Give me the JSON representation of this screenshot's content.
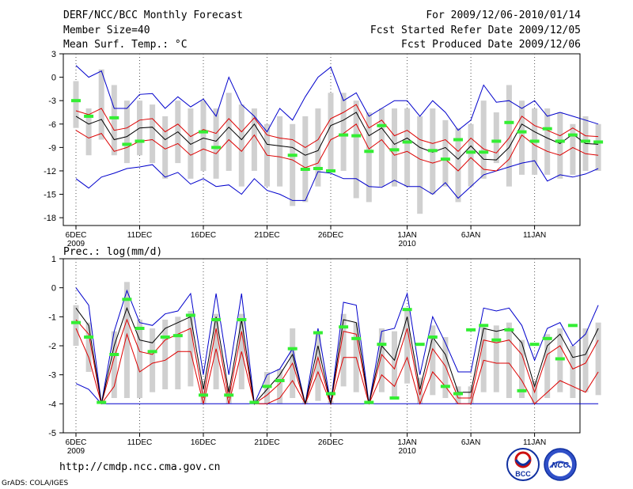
{
  "header": {
    "title": "DERF/NCC/BCC Monthly Forecast",
    "member_size": "Member Size=40",
    "variable": "Mean Surf. Temp.: °C",
    "period": "For 2009/12/06-2010/01/14",
    "fcst_started": "Fcst Started Refer Date 2009/12/05",
    "fcst_produced": "Fcst Produced Date 2009/12/06"
  },
  "footer": {
    "url": "http://cmdp.ncc.cma.gov.cn",
    "grads": "GrADS: COLA/IGES",
    "logo_bcc": "BCC",
    "logo_ncc": "NCC"
  },
  "colors": {
    "max_min": "#0000cc",
    "spread": "#dd0000",
    "mean": "#000000",
    "obs": "#33ee33",
    "box": "#d0d0d0"
  },
  "chart_data": [
    {
      "type": "line",
      "title": "Mean Surf. Temp.: °C",
      "ylim": [
        -18,
        3
      ],
      "yticks": [
        3,
        0,
        -3,
        -6,
        -9,
        -12,
        -15,
        -18
      ],
      "xlabels": [
        {
          "day": 0,
          "label": "6DEC",
          "sub": "2009"
        },
        {
          "day": 5,
          "label": "11DEC",
          "sub": ""
        },
        {
          "day": 10,
          "label": "16DEC",
          "sub": ""
        },
        {
          "day": 15,
          "label": "21DEC",
          "sub": ""
        },
        {
          "day": 20,
          "label": "26DEC",
          "sub": ""
        },
        {
          "day": 26,
          "label": "1JAN",
          "sub": "2010"
        },
        {
          "day": 31,
          "label": "6JAN",
          "sub": ""
        },
        {
          "day": 36,
          "label": "11JAN",
          "sub": ""
        }
      ],
      "max": [
        1.5,
        0,
        0.8,
        -4,
        -4,
        -2.2,
        -2.1,
        -4,
        -2.5,
        -3.8,
        -2.8,
        -5,
        0,
        -3.5,
        -5,
        -7,
        -4,
        -5.5,
        -2.5,
        0,
        1.3,
        -3,
        -2,
        -5,
        -4,
        -3,
        -3,
        -5,
        -3,
        -4.5,
        -6.8,
        -5.5,
        -1,
        -3.2,
        -3,
        -4,
        -3,
        -5,
        -4.5,
        -5,
        -5.5,
        -6
      ],
      "min": [
        -13,
        -14.2,
        -12.8,
        -12.3,
        -11.7,
        -11.5,
        -11.2,
        -12.8,
        -12.2,
        -13.7,
        -13,
        -14,
        -13.8,
        -15,
        -13,
        -14.5,
        -15,
        -15.8,
        -15.8,
        -12.1,
        -12.3,
        -13,
        -13,
        -14,
        -14.1,
        -13.2,
        -14,
        -14,
        -15,
        -13.5,
        -15.5,
        -14,
        -12.5,
        -12,
        -11.5,
        -11,
        -10.7,
        -13.3,
        -12.5,
        -12.8,
        -12.4,
        -11.7
      ],
      "mean": [
        -5,
        -6,
        -5.4,
        -8,
        -7.6,
        -6.5,
        -6.4,
        -8,
        -7,
        -8.6,
        -7.8,
        -8.2,
        -6.4,
        -8,
        -6,
        -8.6,
        -8.8,
        -9,
        -10,
        -9.4,
        -6.2,
        -5.5,
        -4.5,
        -7.5,
        -6.5,
        -8.6,
        -7.8,
        -9,
        -9.6,
        -9,
        -10.5,
        -8.8,
        -10.5,
        -10.6,
        -9,
        -6,
        -7,
        -7.8,
        -8.5,
        -7.3,
        -8.5,
        -8.6
      ],
      "upper": [
        -4.3,
        -4.8,
        -4,
        -6.8,
        -6.5,
        -5.5,
        -5.3,
        -7,
        -6,
        -7.6,
        -6.7,
        -7.2,
        -5.3,
        -7,
        -5.2,
        -7.4,
        -7.8,
        -8,
        -9,
        -8,
        -5.3,
        -4.5,
        -3.5,
        -6.5,
        -5.5,
        -7.5,
        -6.8,
        -8,
        -8.5,
        -8,
        -9.5,
        -7.8,
        -9.2,
        -9.7,
        -7.8,
        -5,
        -6.2,
        -6.8,
        -7.5,
        -6.5,
        -7.5,
        -7.6
      ],
      "lower": [
        -6.8,
        -7.8,
        -7.2,
        -9.5,
        -9,
        -8.2,
        -8,
        -9.2,
        -8.5,
        -10,
        -9.2,
        -9.8,
        -8,
        -9.5,
        -7.4,
        -10,
        -10.2,
        -10.6,
        -11.6,
        -11,
        -8,
        -7.2,
        -6,
        -9.2,
        -8,
        -10,
        -9.5,
        -10.5,
        -11,
        -10.5,
        -12,
        -10.3,
        -11.8,
        -12,
        -10.5,
        -7.4,
        -8.7,
        -9.5,
        -10,
        -9,
        -9.8,
        -10
      ],
      "obs": [
        -3,
        -5,
        null,
        -5.2,
        -8.6,
        -8.2,
        null,
        null,
        null,
        null,
        -7,
        -9,
        null,
        null,
        null,
        null,
        null,
        -10,
        -11.8,
        -11.7,
        -12,
        -7.4,
        -7.5,
        -9.5,
        -6.2,
        -9.3,
        -8.3,
        null,
        -9.4,
        -10.5,
        -8,
        -9.6,
        -9.6,
        -8.2,
        -5.8,
        -7,
        -8.2,
        -6.6,
        -8.2,
        -7.4,
        -8.2,
        -8.3
      ],
      "box_hi": [
        -0.5,
        -4,
        1,
        -1,
        -3,
        -3,
        -3.5,
        -5,
        -3,
        -4,
        -3,
        -4,
        -2,
        -3.5,
        -4,
        -6,
        -5,
        -6,
        -5,
        -4,
        -2,
        -2,
        -3,
        -4.5,
        -4,
        -4,
        -4,
        -5,
        -4,
        -5.5,
        -6.5,
        -6,
        -3,
        -4.5,
        -1,
        -3,
        -4,
        -4,
        -4.5,
        -6,
        -5,
        -6
      ],
      "box_lo": [
        -6.5,
        -10,
        -8,
        -10,
        -11,
        -10,
        -11,
        -13,
        -11,
        -13,
        -12,
        -13,
        -12,
        -14,
        -12,
        -14,
        -14,
        -16.5,
        -16,
        -14,
        -12,
        -12,
        -15.5,
        -16,
        -14,
        -14,
        -14,
        -17.5,
        -15,
        -14,
        -16,
        -14,
        -13,
        -11,
        -14,
        -12.5,
        -12.5,
        -12.5,
        -13,
        -12.5,
        -12,
        -12
      ]
    },
    {
      "type": "line",
      "title": "Prec.: log(mm/d)",
      "ylim": [
        -5,
        1
      ],
      "yticks": [
        1,
        0,
        -1,
        -2,
        -3,
        -4,
        -5
      ],
      "xlabels": [
        {
          "day": 0,
          "label": "6DEC",
          "sub": "2009"
        },
        {
          "day": 5,
          "label": "11DEC",
          "sub": ""
        },
        {
          "day": 10,
          "label": "16DEC",
          "sub": ""
        },
        {
          "day": 15,
          "label": "21DEC",
          "sub": ""
        },
        {
          "day": 20,
          "label": "26DEC",
          "sub": ""
        },
        {
          "day": 26,
          "label": "1JAN",
          "sub": "2010"
        },
        {
          "day": 31,
          "label": "6JAN",
          "sub": ""
        },
        {
          "day": 36,
          "label": "11JAN",
          "sub": ""
        }
      ],
      "max": [
        0,
        -0.6,
        -4,
        -1.5,
        -0.1,
        -1.2,
        -1.3,
        -0.9,
        -0.8,
        -0.2,
        -3,
        -0.2,
        -3,
        -0.2,
        -4,
        -3,
        -2.8,
        -2.1,
        -4,
        -1.4,
        -4,
        -0.5,
        -0.6,
        -4,
        -1.5,
        -1.4,
        -0.2,
        -3,
        -1,
        -1.9,
        -2.9,
        -2.9,
        -0.7,
        -0.8,
        -0.7,
        -1.3,
        -2.5,
        -1.4,
        -1.2,
        -2,
        -1.6,
        -0.6
      ],
      "min": [
        -3.3,
        -3.5,
        -4,
        -4,
        -4,
        -4,
        -4,
        -4,
        -4,
        -4,
        -4,
        -4,
        -4,
        -4,
        -4,
        -4,
        -4,
        -4,
        -4,
        -4,
        -4,
        -4,
        -4,
        -4,
        -4,
        -4,
        -4,
        -4,
        -4,
        -4,
        -4,
        -4,
        -4,
        -4,
        -4,
        -4,
        -4,
        -4,
        -4,
        -4,
        -4,
        -4
      ],
      "mean": [
        -0.7,
        -1.3,
        -4,
        -2,
        -0.7,
        -1.8,
        -1.9,
        -1.4,
        -1.2,
        -1,
        -3.5,
        -1,
        -3.6,
        -1.1,
        -4,
        -3.5,
        -3,
        -2.3,
        -4,
        -2,
        -4,
        -1.1,
        -1.2,
        -4,
        -2,
        -2.5,
        -1,
        -3.5,
        -1.7,
        -2.3,
        -3.6,
        -3.6,
        -1.4,
        -1.5,
        -1.4,
        -1.9,
        -3.4,
        -2,
        -1.6,
        -2.4,
        -2.3,
        -1.4
      ],
      "upper": [
        -1.1,
        -1.6,
        -4,
        -2.4,
        -1.1,
        -2.2,
        -2.3,
        -1.8,
        -1.6,
        -1.4,
        -3.8,
        -1.4,
        -3.8,
        -1.5,
        -4,
        -3.7,
        -3.3,
        -2.6,
        -4,
        -2.4,
        -4,
        -1.5,
        -1.6,
        -4,
        -2.3,
        -2.8,
        -1.4,
        -3.7,
        -2.1,
        -2.7,
        -3.8,
        -3.8,
        -1.8,
        -1.9,
        -1.8,
        -2.3,
        -3.6,
        -2.3,
        -2,
        -2.8,
        -2.6,
        -1.8
      ],
      "lower": [
        -1.4,
        -2.4,
        -4,
        -3.4,
        -1.6,
        -2.9,
        -2.6,
        -2.5,
        -2.2,
        -2.2,
        -4,
        -2.1,
        -4,
        -2.2,
        -4,
        -4,
        -3.8,
        -3.2,
        -4,
        -2.9,
        -4,
        -2.4,
        -2.4,
        -4,
        -3,
        -3.4,
        -2.4,
        -4,
        -2.9,
        -3.4,
        -4,
        -4,
        -2.5,
        -2.6,
        -2.6,
        -3.2,
        -4,
        -3.6,
        -3.2,
        -3.4,
        -3.6,
        -2.9
      ],
      "obs": [
        -1.2,
        -1.7,
        -3.95,
        -2.3,
        -0.4,
        -1.4,
        -2.2,
        -1.7,
        -1.65,
        -0.95,
        -3.7,
        -1.1,
        -3.7,
        -1.1,
        -3.95,
        -3.4,
        -3.2,
        -2.1,
        null,
        -1.55,
        -3.65,
        -1.35,
        -1.75,
        -3.95,
        -1.95,
        -3.8,
        -0.75,
        -1.95,
        -1.7,
        -3.4,
        -3.65,
        -1.45,
        -1.3,
        -1.8,
        -1.45,
        -3.55,
        -1.95,
        -1.75,
        -2.45,
        -1.3,
        null,
        null
      ],
      "box_hi": [
        -0.6,
        -1.2,
        -3.9,
        -1.5,
        0.2,
        -1.1,
        -1.4,
        -1.1,
        -1,
        -0.8,
        -3.2,
        -0.9,
        -3.4,
        -0.9,
        -3.9,
        -2.9,
        -2.8,
        -1.4,
        -3.9,
        -1.6,
        -3.9,
        -0.9,
        -1.2,
        -3.9,
        -1.4,
        -1.5,
        -0.7,
        -3.1,
        -1.3,
        -1.7,
        -3.4,
        -3.4,
        -1.3,
        -1.3,
        -1.2,
        -1.8,
        -3.2,
        -1.6,
        -1.4,
        -2,
        -1.4,
        -1.2
      ],
      "box_lo": [
        -2,
        -2.9,
        -4,
        -3.8,
        -3.8,
        -3.8,
        -3.6,
        -3.5,
        -3.5,
        -3.4,
        -4,
        -3.5,
        -4,
        -3.5,
        -4,
        -4,
        -4,
        -3.8,
        -4,
        -3.9,
        -4,
        -3.4,
        -3.6,
        -4,
        -3.6,
        -3.8,
        -3.3,
        -4,
        -3.7,
        -3.8,
        -4,
        -4,
        -3.6,
        -3.6,
        -3.8,
        -3.8,
        -4,
        -3.8,
        -3.6,
        -3.8,
        -3.6,
        -3.7
      ]
    }
  ]
}
